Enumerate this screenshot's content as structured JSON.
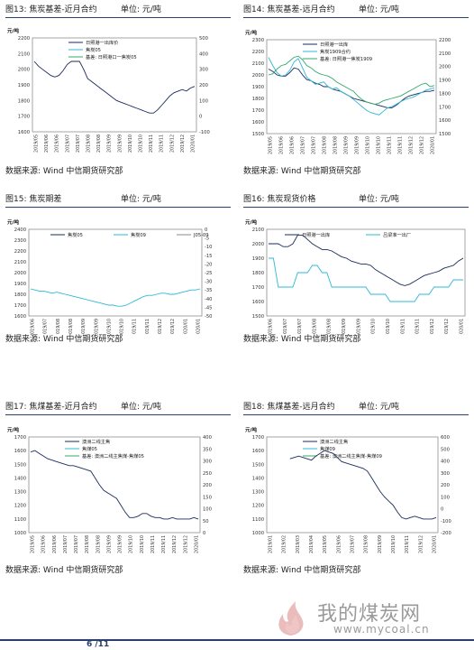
{
  "panels": [
    {
      "id": "fig13",
      "title": "图13: 焦炭基差-近月合约",
      "unit": "单位: 元/吨",
      "source": "数据来源: Wind 中信期货研究部",
      "chart_data": {
        "type": "line",
        "ylabel_left": "元/吨",
        "ylim_left": [
          1600,
          2200
        ],
        "yticks_left": [
          "1600",
          "1700",
          "1800",
          "1900",
          "2000",
          "2100",
          "2200"
        ],
        "ylim_right": [
          -100,
          500
        ],
        "yticks_right": [
          "-100",
          "0",
          "100",
          "200",
          "300",
          "400",
          "500"
        ],
        "x_ticks": [
          "2019/05",
          "2019/06",
          "2019/06",
          "2019/07",
          "2019/07",
          "2019/08",
          "2019/08",
          "2019/09",
          "2019/09",
          "2019/10",
          "2019/10",
          "2019/11",
          "2019/11",
          "2019/12",
          "2019/12",
          "2020/01"
        ],
        "series": [
          {
            "name": "日照港一出库价",
            "axis": "left",
            "color": "#1a2b5e",
            "values": [
              2050,
              2020,
              2000,
              1980,
              1960,
              1950,
              1960,
              1990,
              2030,
              2050,
              2050,
              2050,
              2000,
              1940,
              1920,
              1900,
              1880,
              1860,
              1840,
              1820,
              1800,
              1790,
              1780,
              1770,
              1760,
              1750,
              1740,
              1730,
              1720,
              1720,
              1740,
              1770,
              1800,
              1830,
              1850,
              1860,
              1870,
              1860,
              1880,
              1890
            ]
          },
          {
            "name": "焦炭05",
            "axis": "left",
            "color": "#2db8d8",
            "values": []
          },
          {
            "name": "基差: 日照港口一焦炭05",
            "axis": "right",
            "color": "#36a86a",
            "values": []
          }
        ]
      }
    },
    {
      "id": "fig14",
      "title": "图14: 焦炭基差-远月合约",
      "unit": "单位: 元/吨",
      "source": "数据来源: Wind 中信期货研究部",
      "chart_data": {
        "type": "line",
        "ylabel_left": "元/吨",
        "ylim_left": [
          1500,
          2300
        ],
        "yticks_left": [
          "1500",
          "1600",
          "1700",
          "1800",
          "1900",
          "2000",
          "2100",
          "2200",
          "2300"
        ],
        "ylim_right": [
          1500,
          2200
        ],
        "yticks_right": [
          "1500",
          "1600",
          "1700",
          "1800",
          "1900",
          "2000",
          "2100",
          "2200"
        ],
        "x_ticks": [
          "2019/05",
          "2019/06",
          "2019/06",
          "2019/07",
          "2019/07",
          "2019/08",
          "2019/08",
          "2019/09",
          "2019/09",
          "2019/10",
          "2019/10",
          "2019/11",
          "2019/11",
          "2019/12",
          "2019/12",
          "2020/01"
        ],
        "series": [
          {
            "name": "日照港一出库",
            "axis": "left",
            "color": "#1a2b5e",
            "values": [
              2050,
              2030,
              2000,
              1990,
              1990,
              2020,
              2060,
              2050,
              2000,
              1960,
              1950,
              1930,
              1920,
              1900,
              1900,
              1880,
              1870,
              1860,
              1840,
              1820,
              1800,
              1790,
              1780,
              1770,
              1760,
              1750,
              1740,
              1730,
              1720,
              1720,
              1740,
              1770,
              1800,
              1820,
              1830,
              1840,
              1850,
              1860,
              1860,
              1870
            ]
          },
          {
            "name": "焦炭1909合约",
            "axis": "left",
            "color": "#2db8d8",
            "values": [
              2150,
              2080,
              2020,
              1990,
              2000,
              2040,
              2110,
              2140,
              2060,
              1980,
              1950,
              1920,
              1930,
              1940,
              1900,
              1880,
              1890,
              1860,
              1840,
              1820,
              1790,
              1760,
              1730,
              1700,
              1680,
              1670,
              1660,
              1690,
              1720,
              1730,
              1750,
              1770,
              1790,
              1800,
              1810,
              1830,
              1850,
              1870,
              1880,
              1890
            ]
          },
          {
            "name": "基差: 日照港一焦炭1909",
            "axis": "left",
            "color": "#36a86a",
            "values": [
              2000,
              2010,
              2050,
              2080,
              2090,
              2120,
              2150,
              2160,
              2130,
              2080,
              2060,
              2030,
              2010,
              2000,
              1990,
              1970,
              1940,
              1920,
              1900,
              1880,
              1860,
              1820,
              1790,
              1770,
              1760,
              1750,
              1760,
              1780,
              1790,
              1800,
              1810,
              1820,
              1840,
              1860,
              1880,
              1900,
              1920,
              1930,
              1900,
              1910
            ]
          }
        ]
      }
    },
    {
      "id": "fig15",
      "title": "图15: 焦炭期差",
      "unit": "单位: 元/吨",
      "source": "数据来源: Wind 中信期货研究部",
      "chart_data": {
        "type": "line",
        "ylabel_left": "元/吨",
        "ylim_left": [
          1600,
          2400
        ],
        "yticks_left": [
          "1600",
          "1700",
          "1800",
          "1900",
          "2000",
          "2100",
          "2200",
          "2300",
          "2400"
        ],
        "ylim_right": [
          -50,
          0
        ],
        "yticks_right": [
          "-50",
          "-45",
          "-40",
          "-35",
          "-30",
          "-25",
          "-20",
          "-15",
          "-10",
          "-5",
          "0"
        ],
        "x_ticks": [
          "2019/06",
          "2019/07",
          "2019/08",
          "2019/08",
          "2019/09",
          "2019/09",
          "2019/10",
          "2019/10",
          "2019/11",
          "2019/11",
          "2019/12",
          "2019/12",
          "2020/01",
          "2020/01"
        ],
        "series": [
          {
            "name": "焦炭05",
            "axis": "left",
            "color": "#1a2b5e",
            "values": []
          },
          {
            "name": "焦炭09",
            "axis": "left",
            "color": "#2db8d8",
            "values": [
              1850,
              1840,
              1830,
              1830,
              1820,
              1810,
              1820,
              1810,
              1800,
              1790,
              1780,
              1770,
              1760,
              1750,
              1740,
              1730,
              1720,
              1710,
              1700,
              1700,
              1690,
              1690,
              1700,
              1720,
              1740,
              1760,
              1780,
              1790,
              1790,
              1800,
              1810,
              1810,
              1800,
              1800,
              1810,
              1820,
              1830,
              1840,
              1840,
              1850
            ]
          },
          {
            "name": "J05-09",
            "axis": "right",
            "color": "#8a8a8a",
            "values": []
          }
        ]
      }
    },
    {
      "id": "fig16",
      "title": "图16: 焦炭现货价格",
      "unit": "单位: 元/吨",
      "source": "数据来源: Wind 中信期货研究部",
      "chart_data": {
        "type": "line",
        "ylabel_left": "元/吨",
        "ylim_left": [
          1500,
          2100
        ],
        "yticks_left": [
          "1500",
          "1600",
          "1700",
          "1800",
          "1900",
          "2000",
          "2100"
        ],
        "x_ticks": [
          "2019/06",
          "2019/07",
          "2019/07",
          "2019/08",
          "2019/08",
          "2019/09",
          "2019/09",
          "2019/10",
          "2019/10",
          "2019/11",
          "2019/11",
          "2019/12",
          "2019/12",
          "2020/01"
        ],
        "series": [
          {
            "name": "日照港一出库",
            "axis": "left",
            "color": "#1a2b5e",
            "values": [
              2000,
              2000,
              2000,
              1980,
              1980,
              2000,
              2060,
              2060,
              2030,
              2000,
              1980,
              1960,
              1960,
              1950,
              1930,
              1910,
              1900,
              1880,
              1870,
              1860,
              1860,
              1850,
              1820,
              1800,
              1780,
              1760,
              1740,
              1720,
              1710,
              1720,
              1740,
              1760,
              1780,
              1790,
              1800,
              1810,
              1830,
              1840,
              1850,
              1880,
              1900
            ]
          },
          {
            "name": "吕梁准一出厂",
            "axis": "left",
            "color": "#2db8d8",
            "values": [
              1900,
              1900,
              1700,
              1700,
              1700,
              1700,
              1800,
              1800,
              1800,
              1850,
              1850,
              1800,
              1800,
              1700,
              1700,
              1700,
              1700,
              1700,
              1700,
              1700,
              1700,
              1650,
              1650,
              1650,
              1650,
              1600,
              1600,
              1600,
              1600,
              1600,
              1600,
              1650,
              1650,
              1650,
              1700,
              1700,
              1700,
              1700,
              1750,
              1750,
              1750
            ]
          }
        ]
      }
    },
    {
      "id": "fig17",
      "title": "图17: 焦煤基差-近月合约",
      "unit": "单位: 元/吨",
      "source": "数据来源: Wind 中信期货研究部",
      "chart_data": {
        "type": "line",
        "ylabel_left": "元/吨",
        "ylim_left": [
          1000,
          1700
        ],
        "yticks_left": [
          "1000",
          "1100",
          "1200",
          "1300",
          "1400",
          "1500",
          "1600",
          "1700"
        ],
        "ylim_right": [
          0,
          400
        ],
        "yticks_right": [
          "0",
          "50",
          "100",
          "150",
          "200",
          "250",
          "300",
          "350",
          "400"
        ],
        "x_ticks": [
          "2019/05",
          "2019/06",
          "2019/06",
          "2019/07",
          "2019/07",
          "2019/08",
          "2019/08",
          "2019/09",
          "2019/09",
          "2019/10",
          "2019/10",
          "2019/11",
          "2019/11",
          "2019/12",
          "2019/12",
          "2020/01"
        ],
        "series": [
          {
            "name": "澳洲二线主焦",
            "axis": "left",
            "color": "#1a2b5e",
            "values": [
              1590,
              1600,
              1580,
              1560,
              1540,
              1530,
              1520,
              1510,
              1500,
              1490,
              1490,
              1480,
              1470,
              1460,
              1450,
              1400,
              1350,
              1310,
              1290,
              1270,
              1250,
              1200,
              1150,
              1110,
              1110,
              1120,
              1140,
              1140,
              1120,
              1110,
              1110,
              1100,
              1100,
              1110,
              1100,
              1100,
              1100,
              1100,
              1110,
              1100
            ]
          },
          {
            "name": "焦煤05",
            "axis": "left",
            "color": "#2db8d8",
            "values": []
          },
          {
            "name": "基差: 澳洲二线主焦煤-焦煤05",
            "axis": "right",
            "color": "#36a86a",
            "values": []
          }
        ]
      }
    },
    {
      "id": "fig18",
      "title": "图18: 焦煤基差-远月合约",
      "unit": "单位: 元/吨",
      "source": "数据来源: Wind 中信期货研究部",
      "chart_data": {
        "type": "line",
        "ylabel_left": "元/吨",
        "ylim_left": [
          1000,
          1700
        ],
        "yticks_left": [
          "1000",
          "1100",
          "1200",
          "1300",
          "1400",
          "1500",
          "1600",
          "1700"
        ],
        "ylim_right": [
          -200,
          600
        ],
        "yticks_right": [
          "-200",
          "-100",
          "0",
          "100",
          "200",
          "300",
          "400",
          "500",
          "600"
        ],
        "x_ticks": [
          "2019/01",
          "2019/02",
          "2019/03",
          "2019/04",
          "2019/05",
          "2019/06",
          "2019/07",
          "2019/08",
          "2019/09",
          "2019/10",
          "2019/11",
          "2019/12",
          "2020/01"
        ],
        "series": [
          {
            "name": "澳洲二线主焦",
            "axis": "left",
            "color": "#1a2b5e",
            "values": [
              null,
              null,
              null,
              null,
              null,
              1540,
              1550,
              1560,
              1550,
              1540,
              1530,
              1560,
              1580,
              1600,
              1590,
              1580,
              1550,
              1520,
              1510,
              1500,
              1490,
              1480,
              1470,
              1450,
              1400,
              1350,
              1300,
              1260,
              1230,
              1200,
              1150,
              1110,
              1100,
              1110,
              1120,
              1110,
              1100,
              1100,
              1100,
              1110
            ]
          },
          {
            "name": "焦煤09",
            "axis": "left",
            "color": "#2db8d8",
            "values": []
          },
          {
            "name": "基差: 澳洲二线主焦煤-焦煤09",
            "axis": "right",
            "color": "#36a86a",
            "values": []
          }
        ]
      }
    }
  ],
  "footer": {
    "page": "6 /11"
  },
  "watermark": {
    "text": "我的煤炭网",
    "url": "www.mycoal.cn"
  }
}
